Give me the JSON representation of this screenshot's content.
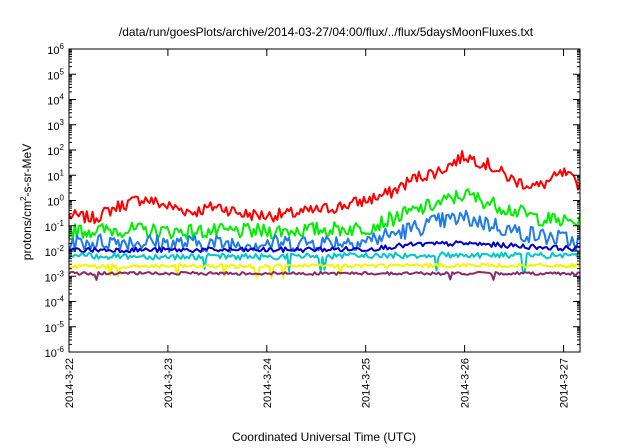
{
  "chart_data": {
    "type": "line",
    "title": "/data/run/goesPlots/archive/2014-03-27/04:00/flux/../flux/5daysMoonFluxes.txt",
    "xlabel": "Coordinated Universal Time (UTC)",
    "ylabel_parts": {
      "base": "protons/cm",
      "sup": "2",
      "rest": "-s-sr-MeV"
    },
    "x_axis": {
      "type": "date",
      "range": [
        "2014-03-22T00:00",
        "2014-03-27T04:00"
      ],
      "ticks": [
        "2014-3-22",
        "2014-3-23",
        "2014-3-24",
        "2014-3-25",
        "2014-3-26",
        "2014-3-27"
      ]
    },
    "y_axis": {
      "scale": "log",
      "ylim": [
        1e-06,
        1000000.0
      ],
      "tick_base": "10",
      "tick_exponents": [
        "-6",
        "-5",
        "-4",
        "-3",
        "-2",
        "-1",
        "0",
        "1",
        "2",
        "3",
        "4",
        "5",
        "6"
      ]
    },
    "grid": false,
    "legend": "none",
    "series": [
      {
        "color": "#ff0000",
        "noise": 0.25,
        "x": [
          "2014-03-22T00:00",
          "2014-03-22T06:00",
          "2014-03-22T12:00",
          "2014-03-22T18:00",
          "2014-03-23T00:00",
          "2014-03-23T06:00",
          "2014-03-23T12:00",
          "2014-03-23T18:00",
          "2014-03-24T00:00",
          "2014-03-24T06:00",
          "2014-03-24T12:00",
          "2014-03-24T18:00",
          "2014-03-25T00:00",
          "2014-03-25T06:00",
          "2014-03-25T12:00",
          "2014-03-25T18:00",
          "2014-03-26T00:00",
          "2014-03-26T06:00",
          "2014-03-26T12:00",
          "2014-03-26T18:00",
          "2014-03-27T00:00",
          "2014-03-27T04:00"
        ],
        "y": [
          0.25,
          0.2,
          0.6,
          1.2,
          0.6,
          0.35,
          0.6,
          0.3,
          0.25,
          0.3,
          0.4,
          0.6,
          1.0,
          2.0,
          8.0,
          15.0,
          60.0,
          25.0,
          6.0,
          3.5,
          12.0,
          4.0
        ]
      },
      {
        "color": "#00ee00",
        "noise": 0.3,
        "x": [
          "2014-03-22T00:00",
          "2014-03-22T12:00",
          "2014-03-23T00:00",
          "2014-03-23T12:00",
          "2014-03-24T00:00",
          "2014-03-24T12:00",
          "2014-03-25T00:00",
          "2014-03-25T12:00",
          "2014-03-25T18:00",
          "2014-03-26T00:00",
          "2014-03-26T06:00",
          "2014-03-26T12:00",
          "2014-03-26T18:00",
          "2014-03-27T00:00",
          "2014-03-27T04:00"
        ],
        "y": [
          0.06,
          0.07,
          0.06,
          0.06,
          0.06,
          0.07,
          0.08,
          0.4,
          0.8,
          1.8,
          0.8,
          0.4,
          0.2,
          0.15,
          0.14
        ]
      },
      {
        "color": "#1e7be8",
        "noise": 0.35,
        "x": [
          "2014-03-22T00:00",
          "2014-03-22T12:00",
          "2014-03-23T00:00",
          "2014-03-23T12:00",
          "2014-03-24T00:00",
          "2014-03-24T12:00",
          "2014-03-25T00:00",
          "2014-03-25T12:00",
          "2014-03-25T18:00",
          "2014-03-26T00:00",
          "2014-03-26T06:00",
          "2014-03-26T12:00",
          "2014-03-26T18:00",
          "2014-03-27T00:00",
          "2014-03-27T04:00"
        ],
        "y": [
          0.02,
          0.025,
          0.02,
          0.02,
          0.02,
          0.022,
          0.025,
          0.08,
          0.15,
          0.2,
          0.12,
          0.06,
          0.04,
          0.03,
          0.02
        ]
      },
      {
        "color": "#0000c8",
        "noise": 0.1,
        "x": [
          "2014-03-22T00:00",
          "2014-03-23T00:00",
          "2014-03-24T00:00",
          "2014-03-25T00:00",
          "2014-03-25T12:00",
          "2014-03-26T00:00",
          "2014-03-26T12:00",
          "2014-03-27T00:00",
          "2014-03-27T04:00"
        ],
        "y": [
          0.011,
          0.011,
          0.011,
          0.012,
          0.018,
          0.02,
          0.016,
          0.013,
          0.012
        ]
      },
      {
        "color": "#00c8c8",
        "noise": 0.12,
        "x": [
          "2014-03-22T00:00",
          "2014-03-23T00:00",
          "2014-03-24T00:00",
          "2014-03-25T00:00",
          "2014-03-26T00:00",
          "2014-03-27T00:00",
          "2014-03-27T04:00"
        ],
        "y": [
          0.0065,
          0.006,
          0.006,
          0.0065,
          0.007,
          0.0065,
          0.006
        ]
      },
      {
        "color": "#f5f500",
        "noise": 0.08,
        "x": [
          "2014-03-22T00:00",
          "2014-03-23T00:00",
          "2014-03-24T00:00",
          "2014-03-25T00:00",
          "2014-03-26T00:00",
          "2014-03-27T00:00",
          "2014-03-27T04:00"
        ],
        "y": [
          0.0025,
          0.0025,
          0.0025,
          0.0026,
          0.0027,
          0.0026,
          0.0025
        ]
      },
      {
        "color": "#8b2a6a",
        "noise": 0.06,
        "x": [
          "2014-03-22T00:00",
          "2014-03-23T00:00",
          "2014-03-24T00:00",
          "2014-03-25T00:00",
          "2014-03-26T00:00",
          "2014-03-27T00:00",
          "2014-03-27T04:00"
        ],
        "y": [
          0.0013,
          0.0013,
          0.0013,
          0.0013,
          0.0013,
          0.0013,
          0.0013
        ]
      }
    ]
  }
}
